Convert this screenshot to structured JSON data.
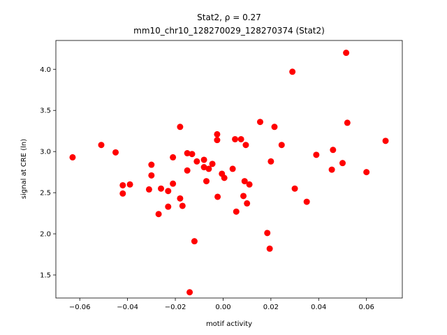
{
  "chart_data": {
    "type": "scatter",
    "title_line1": "Stat2, ρ = 0.27",
    "title_line2": "mm10_chr10_128270029_128270374 (Stat2)",
    "xlabel": "motif activity",
    "ylabel": "signal at CRE (ln)",
    "xlim": [
      -0.07,
      0.075
    ],
    "ylim": [
      1.22,
      4.35
    ],
    "x_ticks": [
      -0.06,
      -0.04,
      -0.02,
      0.0,
      0.02,
      0.04,
      0.06
    ],
    "x_tick_labels": [
      "−0.06",
      "−0.04",
      "−0.02",
      "0.00",
      "0.02",
      "0.04",
      "0.06"
    ],
    "y_ticks": [
      1.5,
      2.0,
      2.5,
      3.0,
      3.5,
      4.0
    ],
    "y_tick_labels": [
      "1.5",
      "2.0",
      "2.5",
      "3.0",
      "3.5",
      "4.0"
    ],
    "grid": false,
    "marker_color": "#ff0000",
    "points": [
      {
        "x": -0.063,
        "y": 2.93
      },
      {
        "x": -0.051,
        "y": 3.08
      },
      {
        "x": -0.045,
        "y": 2.99
      },
      {
        "x": -0.042,
        "y": 2.59
      },
      {
        "x": -0.042,
        "y": 2.49
      },
      {
        "x": -0.039,
        "y": 2.6
      },
      {
        "x": -0.031,
        "y": 2.54
      },
      {
        "x": -0.03,
        "y": 2.84
      },
      {
        "x": -0.03,
        "y": 2.71
      },
      {
        "x": -0.027,
        "y": 2.24
      },
      {
        "x": -0.026,
        "y": 2.55
      },
      {
        "x": -0.023,
        "y": 2.52
      },
      {
        "x": -0.023,
        "y": 2.33
      },
      {
        "x": -0.021,
        "y": 2.93
      },
      {
        "x": -0.021,
        "y": 2.61
      },
      {
        "x": -0.018,
        "y": 3.3
      },
      {
        "x": -0.018,
        "y": 2.43
      },
      {
        "x": -0.017,
        "y": 2.34
      },
      {
        "x": -0.015,
        "y": 2.98
      },
      {
        "x": -0.015,
        "y": 2.77
      },
      {
        "x": -0.014,
        "y": 1.29
      },
      {
        "x": -0.013,
        "y": 2.97
      },
      {
        "x": -0.012,
        "y": 1.91
      },
      {
        "x": -0.011,
        "y": 2.88
      },
      {
        "x": -0.008,
        "y": 2.9
      },
      {
        "x": -0.008,
        "y": 2.81
      },
      {
        "x": -0.007,
        "y": 2.64
      },
      {
        "x": -0.006,
        "y": 2.79
      },
      {
        "x": -0.0045,
        "y": 2.85
      },
      {
        "x": -0.0025,
        "y": 3.21
      },
      {
        "x": -0.0025,
        "y": 3.14
      },
      {
        "x": -0.0023,
        "y": 2.45
      },
      {
        "x": -0.0005,
        "y": 2.73
      },
      {
        "x": 0.0005,
        "y": 2.68
      },
      {
        "x": 0.004,
        "y": 2.79
      },
      {
        "x": 0.005,
        "y": 3.15
      },
      {
        "x": 0.0055,
        "y": 2.27
      },
      {
        "x": 0.0075,
        "y": 3.15
      },
      {
        "x": 0.0085,
        "y": 2.46
      },
      {
        "x": 0.009,
        "y": 2.64
      },
      {
        "x": 0.0095,
        "y": 3.08
      },
      {
        "x": 0.01,
        "y": 2.37
      },
      {
        "x": 0.011,
        "y": 2.6
      },
      {
        "x": 0.0155,
        "y": 3.36
      },
      {
        "x": 0.0185,
        "y": 2.01
      },
      {
        "x": 0.0195,
        "y": 1.82
      },
      {
        "x": 0.02,
        "y": 2.88
      },
      {
        "x": 0.0215,
        "y": 3.3
      },
      {
        "x": 0.0245,
        "y": 3.08
      },
      {
        "x": 0.029,
        "y": 3.97
      },
      {
        "x": 0.03,
        "y": 2.55
      },
      {
        "x": 0.035,
        "y": 2.39
      },
      {
        "x": 0.039,
        "y": 2.96
      },
      {
        "x": 0.0455,
        "y": 2.78
      },
      {
        "x": 0.046,
        "y": 3.02
      },
      {
        "x": 0.05,
        "y": 2.86
      },
      {
        "x": 0.0515,
        "y": 4.2
      },
      {
        "x": 0.052,
        "y": 3.35
      },
      {
        "x": 0.06,
        "y": 2.75
      },
      {
        "x": 0.068,
        "y": 3.13
      }
    ]
  }
}
